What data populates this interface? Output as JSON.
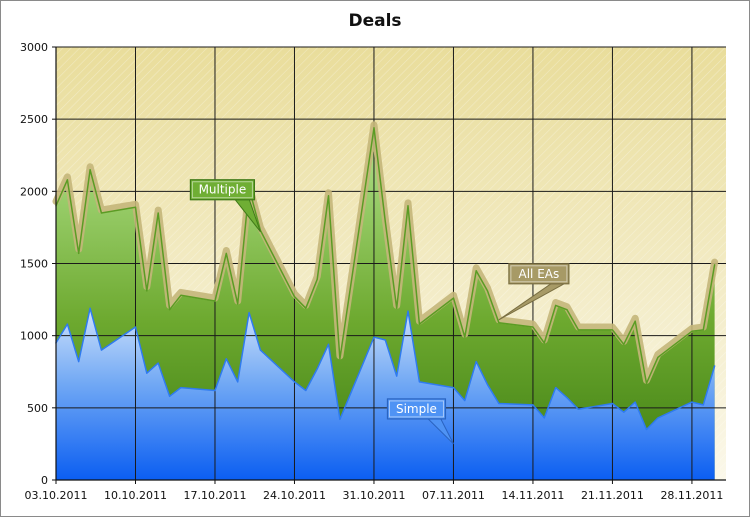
{
  "chart_data": {
    "type": "area",
    "title": "Deals",
    "xlabel": "",
    "ylabel": "",
    "ylim": [
      0,
      3000
    ],
    "yticks": [
      0,
      500,
      1000,
      1500,
      2000,
      2500,
      3000
    ],
    "xlim": [
      "2011-10-03",
      "2011-12-01"
    ],
    "xticks": [
      "2011-10-03",
      "2011-10-10",
      "2011-10-17",
      "2011-10-24",
      "2011-10-31",
      "2011-11-07",
      "2011-11-14",
      "2011-11-21",
      "2011-11-28"
    ],
    "xtick_labels": [
      "03.10.2011",
      "10.10.2011",
      "17.10.2011",
      "24.10.2011",
      "31.10.2011",
      "07.11.2011",
      "14.11.2011",
      "21.11.2011",
      "28.11.2011"
    ],
    "grid": true,
    "legend": "none",
    "series": [
      {
        "name": "All EAs",
        "color": "#c4b67a",
        "points": [
          [
            "2011-10-03",
            1930
          ],
          [
            "2011-10-04",
            2100
          ],
          [
            "2011-10-05",
            1600
          ],
          [
            "2011-10-06",
            2170
          ],
          [
            "2011-10-07",
            1870
          ],
          [
            "2011-10-10",
            1910
          ],
          [
            "2011-10-11",
            1340
          ],
          [
            "2011-10-12",
            1870
          ],
          [
            "2011-10-13",
            1210
          ],
          [
            "2011-10-14",
            1300
          ],
          [
            "2011-10-17",
            1260
          ],
          [
            "2011-10-18",
            1590
          ],
          [
            "2011-10-19",
            1240
          ],
          [
            "2011-10-20",
            2040
          ],
          [
            "2011-10-21",
            1750
          ],
          [
            "2011-10-24",
            1290
          ],
          [
            "2011-10-25",
            1210
          ],
          [
            "2011-10-26",
            1410
          ],
          [
            "2011-10-27",
            1990
          ],
          [
            "2011-10-28",
            860
          ],
          [
            "2011-10-31",
            2460
          ],
          [
            "2011-11-01",
            1810
          ],
          [
            "2011-11-02",
            1210
          ],
          [
            "2011-11-03",
            1920
          ],
          [
            "2011-11-04",
            1100
          ],
          [
            "2011-11-07",
            1280
          ],
          [
            "2011-11-08",
            1010
          ],
          [
            "2011-11-09",
            1470
          ],
          [
            "2011-11-10",
            1330
          ],
          [
            "2011-11-11",
            1110
          ],
          [
            "2011-11-14",
            1080
          ],
          [
            "2011-11-15",
            970
          ],
          [
            "2011-11-16",
            1230
          ],
          [
            "2011-11-17",
            1200
          ],
          [
            "2011-11-18",
            1060
          ],
          [
            "2011-11-21",
            1060
          ],
          [
            "2011-11-22",
            960
          ],
          [
            "2011-11-23",
            1120
          ],
          [
            "2011-11-24",
            690
          ],
          [
            "2011-11-25",
            870
          ],
          [
            "2011-11-28",
            1050
          ],
          [
            "2011-11-29",
            1060
          ],
          [
            "2011-11-30",
            1510
          ]
        ]
      },
      {
        "name": "Multiple",
        "color": "#6fae34",
        "points": [
          [
            "2011-10-03",
            1900
          ],
          [
            "2011-10-04",
            2080
          ],
          [
            "2011-10-05",
            1570
          ],
          [
            "2011-10-06",
            2150
          ],
          [
            "2011-10-07",
            1850
          ],
          [
            "2011-10-10",
            1890
          ],
          [
            "2011-10-11",
            1310
          ],
          [
            "2011-10-12",
            1850
          ],
          [
            "2011-10-13",
            1180
          ],
          [
            "2011-10-14",
            1280
          ],
          [
            "2011-10-17",
            1240
          ],
          [
            "2011-10-18",
            1570
          ],
          [
            "2011-10-19",
            1220
          ],
          [
            "2011-10-20",
            2020
          ],
          [
            "2011-10-21",
            1730
          ],
          [
            "2011-10-24",
            1270
          ],
          [
            "2011-10-25",
            1190
          ],
          [
            "2011-10-26",
            1390
          ],
          [
            "2011-10-27",
            1970
          ],
          [
            "2011-10-28",
            840
          ],
          [
            "2011-10-31",
            2440
          ],
          [
            "2011-11-01",
            1790
          ],
          [
            "2011-11-02",
            1190
          ],
          [
            "2011-11-03",
            1900
          ],
          [
            "2011-11-04",
            1080
          ],
          [
            "2011-11-07",
            1260
          ],
          [
            "2011-11-08",
            990
          ],
          [
            "2011-11-09",
            1450
          ],
          [
            "2011-11-10",
            1310
          ],
          [
            "2011-11-11",
            1090
          ],
          [
            "2011-11-14",
            1060
          ],
          [
            "2011-11-15",
            950
          ],
          [
            "2011-11-16",
            1210
          ],
          [
            "2011-11-17",
            1180
          ],
          [
            "2011-11-18",
            1040
          ],
          [
            "2011-11-21",
            1040
          ],
          [
            "2011-11-22",
            940
          ],
          [
            "2011-11-23",
            1100
          ],
          [
            "2011-11-24",
            670
          ],
          [
            "2011-11-25",
            850
          ],
          [
            "2011-11-28",
            1030
          ],
          [
            "2011-11-29",
            1040
          ],
          [
            "2011-11-30",
            1490
          ]
        ]
      },
      {
        "name": "Simple",
        "color": "#2f7bf0",
        "points": [
          [
            "2011-10-03",
            950
          ],
          [
            "2011-10-04",
            1080
          ],
          [
            "2011-10-05",
            820
          ],
          [
            "2011-10-06",
            1190
          ],
          [
            "2011-10-07",
            900
          ],
          [
            "2011-10-10",
            1060
          ],
          [
            "2011-10-11",
            740
          ],
          [
            "2011-10-12",
            810
          ],
          [
            "2011-10-13",
            580
          ],
          [
            "2011-10-14",
            640
          ],
          [
            "2011-10-17",
            620
          ],
          [
            "2011-10-18",
            840
          ],
          [
            "2011-10-19",
            680
          ],
          [
            "2011-10-20",
            1160
          ],
          [
            "2011-10-21",
            900
          ],
          [
            "2011-10-24",
            680
          ],
          [
            "2011-10-25",
            620
          ],
          [
            "2011-10-26",
            770
          ],
          [
            "2011-10-27",
            940
          ],
          [
            "2011-10-28",
            420
          ],
          [
            "2011-10-31",
            990
          ],
          [
            "2011-11-01",
            970
          ],
          [
            "2011-11-02",
            720
          ],
          [
            "2011-11-03",
            1170
          ],
          [
            "2011-11-04",
            680
          ],
          [
            "2011-11-07",
            640
          ],
          [
            "2011-11-08",
            550
          ],
          [
            "2011-11-09",
            820
          ],
          [
            "2011-11-10",
            660
          ],
          [
            "2011-11-11",
            530
          ],
          [
            "2011-11-14",
            520
          ],
          [
            "2011-11-15",
            430
          ],
          [
            "2011-11-16",
            640
          ],
          [
            "2011-11-17",
            570
          ],
          [
            "2011-11-18",
            490
          ],
          [
            "2011-11-21",
            530
          ],
          [
            "2011-11-22",
            470
          ],
          [
            "2011-11-23",
            540
          ],
          [
            "2011-11-24",
            350
          ],
          [
            "2011-11-25",
            430
          ],
          [
            "2011-11-28",
            540
          ],
          [
            "2011-11-29",
            520
          ],
          [
            "2011-11-30",
            790
          ]
        ]
      }
    ],
    "annotations": [
      {
        "text": "Multiple",
        "series": "Multiple",
        "target": [
          "2011-10-21",
          1720
        ],
        "bg": "#6fae34",
        "border": "#3f7a18"
      },
      {
        "text": "All EAs",
        "series": "All EAs",
        "target": [
          "2011-11-11",
          1110
        ],
        "bg": "#a79a66",
        "border": "#7a6f42"
      },
      {
        "text": "Simple",
        "series": "Simple",
        "target": [
          "2011-11-07",
          250
        ],
        "bg": "#4f93f4",
        "border": "#2a63c0"
      }
    ]
  }
}
